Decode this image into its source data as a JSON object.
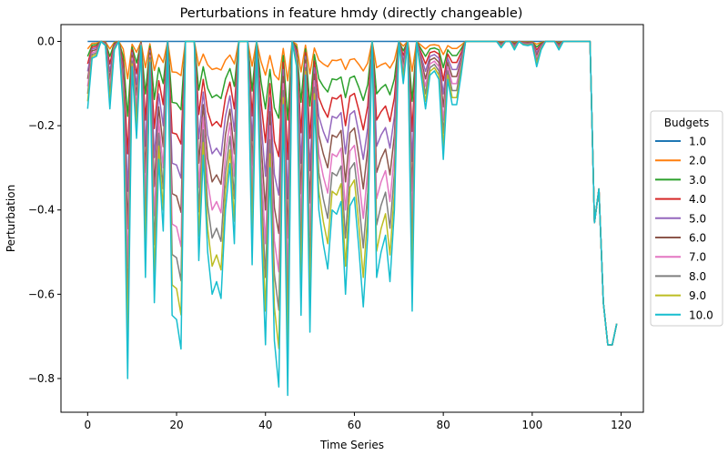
{
  "chart_data": {
    "type": "line",
    "title": "Perturbations in feature hmdy (directly changeable)",
    "xlabel": "Time Series",
    "ylabel": "Perturbation",
    "xlim": [
      -6,
      125
    ],
    "ylim": [
      -0.88,
      0.04
    ],
    "xticks": [
      0,
      20,
      40,
      60,
      80,
      100,
      120
    ],
    "yticks": [
      0.0,
      -0.2,
      -0.4,
      -0.6,
      -0.8
    ],
    "ytick_labels": [
      "0.0",
      "−0.2",
      "−0.4",
      "−0.6",
      "−0.8"
    ],
    "grid": false,
    "legend": {
      "title": "Budgets",
      "placement": "outside-right"
    },
    "colors": [
      "#1f77b4",
      "#ff7f0e",
      "#2ca02c",
      "#d62728",
      "#9467bd",
      "#8c564b",
      "#e377c2",
      "#7f7f7f",
      "#bcbd22",
      "#17becf"
    ],
    "budgets": [
      "1.0",
      "2.0",
      "3.0",
      "4.0",
      "5.0",
      "6.0",
      "7.0",
      "8.0",
      "9.0",
      "10.0"
    ],
    "budget_values": [
      1,
      2,
      3,
      4,
      5,
      6,
      7,
      8,
      9,
      10
    ],
    "x": [
      0,
      1,
      2,
      3,
      4,
      5,
      6,
      7,
      8,
      9,
      10,
      11,
      12,
      13,
      14,
      15,
      16,
      17,
      18,
      19,
      20,
      21,
      22,
      23,
      24,
      25,
      26,
      27,
      28,
      29,
      30,
      31,
      32,
      33,
      34,
      35,
      36,
      37,
      38,
      39,
      40,
      41,
      42,
      43,
      44,
      45,
      46,
      47,
      48,
      49,
      50,
      51,
      52,
      53,
      54,
      55,
      56,
      57,
      58,
      59,
      60,
      61,
      62,
      63,
      64,
      65,
      66,
      67,
      68,
      69,
      70,
      71,
      72,
      73,
      74,
      75,
      76,
      77,
      78,
      79,
      80,
      81,
      82,
      83,
      84,
      85,
      86,
      87,
      88,
      89,
      90,
      91,
      92,
      93,
      94,
      95,
      96,
      97,
      98,
      99,
      100,
      101,
      102,
      103,
      104,
      105,
      106,
      107,
      108,
      109,
      110,
      111,
      112,
      113,
      114,
      115,
      116,
      117,
      118,
      119
    ],
    "envelope": [
      -0.16,
      -0.04,
      -0.035,
      0,
      -0.01,
      -0.16,
      -0.02,
      0,
      -0.16,
      -0.8,
      -0.06,
      -0.23,
      -0.01,
      -0.56,
      -0.05,
      -0.62,
      -0.28,
      -0.45,
      0,
      -0.65,
      -0.66,
      -0.73,
      0,
      0,
      0,
      -0.52,
      -0.27,
      -0.5,
      -0.6,
      -0.57,
      -0.61,
      -0.4,
      -0.29,
      -0.48,
      0,
      0,
      0,
      -0.53,
      0,
      -0.43,
      -0.72,
      -0.3,
      -0.71,
      -0.82,
      -0.15,
      -0.84,
      0,
      -0.06,
      -0.65,
      -0.08,
      -0.69,
      -0.14,
      -0.4,
      -0.48,
      -0.54,
      -0.4,
      -0.41,
      -0.38,
      -0.6,
      -0.39,
      -0.37,
      -0.49,
      -0.63,
      -0.46,
      0,
      -0.56,
      -0.5,
      -0.46,
      -0.57,
      -0.4,
      0,
      -0.1,
      0,
      -0.64,
      0,
      -0.08,
      -0.16,
      -0.08,
      -0.07,
      -0.09,
      -0.28,
      -0.09,
      -0.15,
      -0.15,
      -0.08,
      0,
      0,
      0,
      0,
      0,
      0,
      0,
      0,
      -0.015,
      0,
      0,
      -0.02,
      0,
      -0.008,
      -0.01,
      -0.007,
      -0.06,
      -0.02,
      0,
      0,
      0,
      -0.02,
      0,
      0,
      0,
      0,
      0,
      0,
      0,
      -0.43,
      -0.35,
      -0.62,
      -0.72,
      -0.72,
      -0.67
    ],
    "fixed_tail_from_index": 114
  }
}
